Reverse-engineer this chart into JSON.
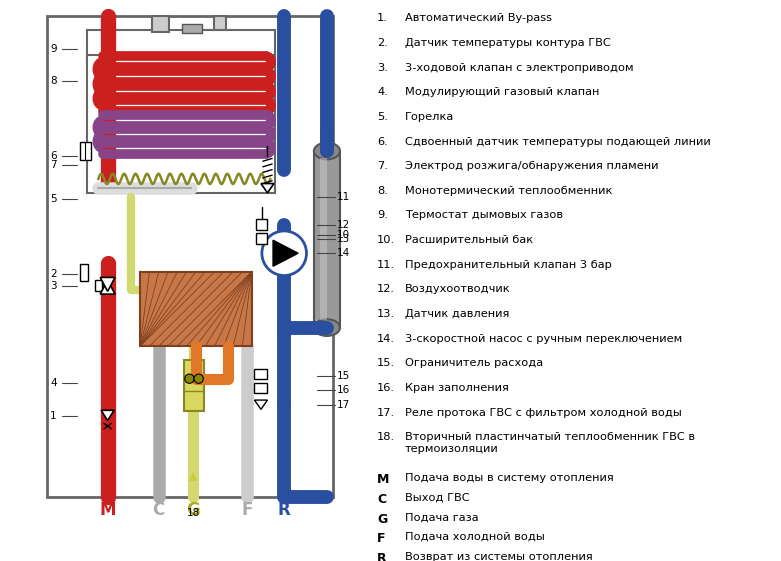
{
  "colors": {
    "red": "#cc2020",
    "blue": "#2a4fa0",
    "blue_med": "#4466bb",
    "gray": "#aaaaaa",
    "gray_light": "#cccccc",
    "yellow_green": "#d4d870",
    "orange": "#e07828",
    "purple": "#884488",
    "olive": "#888822",
    "box_border": "#666666",
    "tank_gray": "#999999",
    "tank_light": "#bbbbbb",
    "text_black": "#000000",
    "bg": "#ffffff"
  },
  "legend_items": [
    [
      "1.",
      "Автоматический By-pass"
    ],
    [
      "2.",
      "Датчик температуры контура ГВС"
    ],
    [
      "3.",
      "3-ходовой клапан с электроприводом"
    ],
    [
      "4.",
      "Модулирующий газовый клапан"
    ],
    [
      "5.",
      "Горелка"
    ],
    [
      "6.",
      "Сдвоенный датчик температуры подающей линии"
    ],
    [
      "7.",
      "Электрод розжига/обнаружения пламени"
    ],
    [
      "8.",
      "Монотермический теплообменник"
    ],
    [
      "9.",
      "Термостат дымовых газов"
    ],
    [
      "10.",
      "Расширительный бак"
    ],
    [
      "11.",
      "Предохранительный клапан 3 бар"
    ],
    [
      "12.",
      "Воздухоотводчик"
    ],
    [
      "13.",
      "Датчик давления"
    ],
    [
      "14.",
      "3-скоростной насос с ручным переключением"
    ],
    [
      "15.",
      "Ограничитель расхода"
    ],
    [
      "16.",
      "Кран заполнения"
    ],
    [
      "17.",
      "Реле протока ГВС с фильтром холодной воды"
    ],
    [
      "18.",
      "Вторичный пластинчатый теплообменник ГВС в\n         термоизоляции"
    ]
  ],
  "port_labels": [
    [
      "M",
      "Подача воды в систему отопления"
    ],
    [
      "C",
      "Выход ГВС"
    ],
    [
      "G",
      "Подача газа"
    ],
    [
      "F",
      "Подача холодной воды"
    ],
    [
      "R",
      "Возврат из системы отопления"
    ]
  ]
}
